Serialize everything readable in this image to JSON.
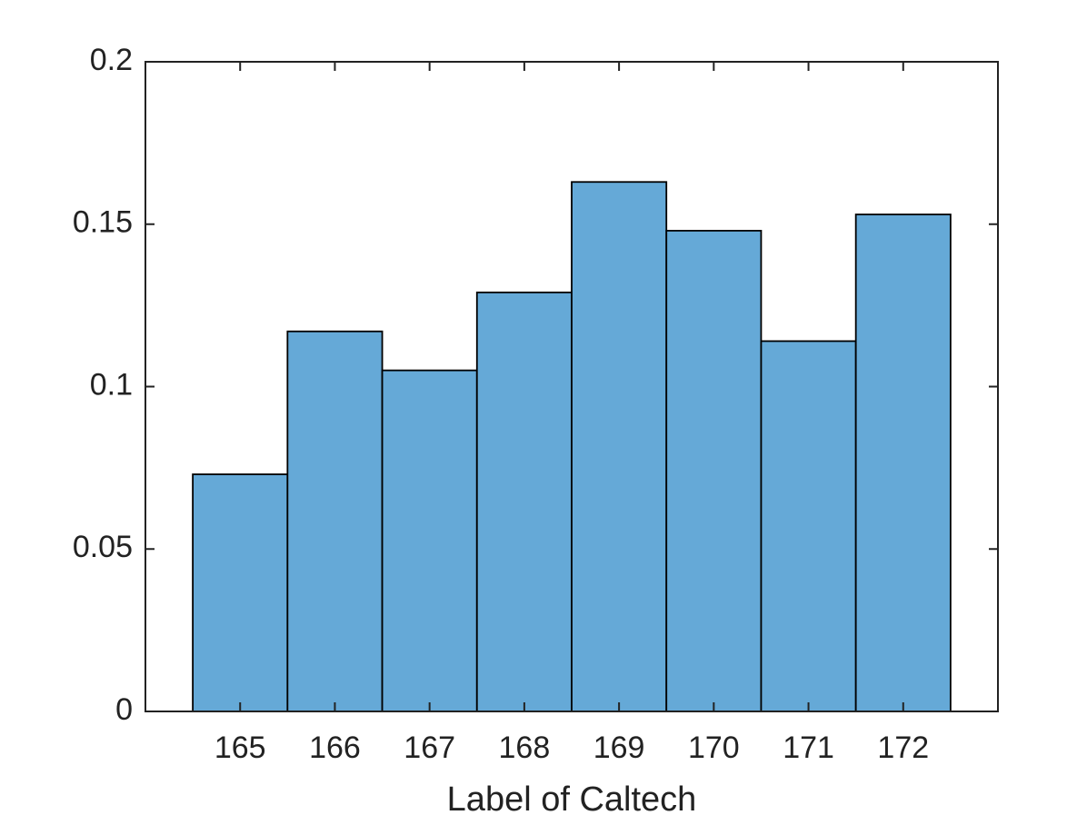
{
  "chart_data": {
    "type": "histogram",
    "xlabel": "Label of Caltech",
    "bins": [
      164.5,
      165.5,
      166.5,
      167.5,
      168.5,
      169.5,
      170.5,
      171.5,
      172.5
    ],
    "values": [
      0.073,
      0.117,
      0.105,
      0.129,
      0.163,
      0.148,
      0.114,
      0.153
    ],
    "color": "#65a9d7",
    "edgecolor": "#000000",
    "xlim": [
      164,
      173
    ],
    "xticks": [
      165,
      166,
      167,
      168,
      169,
      170,
      171,
      172
    ],
    "ylim": [
      0,
      0.2
    ],
    "yticks": [
      0,
      0.05,
      0.1,
      0.15,
      0.2
    ],
    "grid": false
  }
}
